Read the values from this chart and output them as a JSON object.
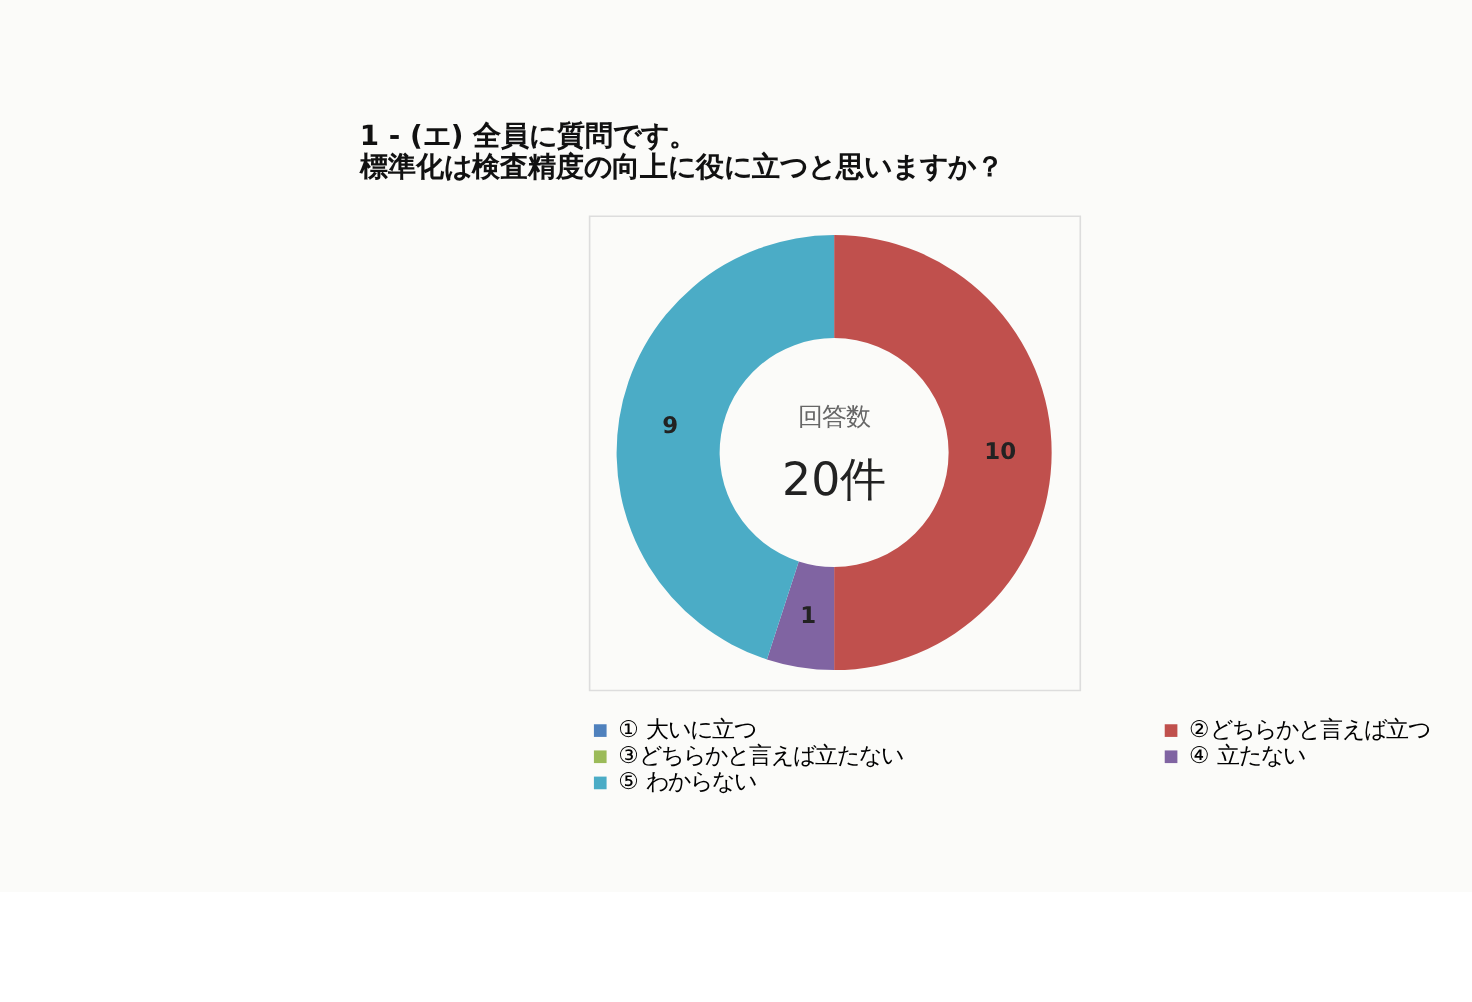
{
  "chart_data": {
    "type": "donut",
    "title": [
      "1 - (エ) 全員に質問です。",
      "標準化は検査精度の向上に役に立つと思いますか？"
    ],
    "categories": [
      "① 大いに立つ",
      "②どちらかと言えば立つ",
      "③どちらかと言えば立たない",
      "④ 立たない",
      "⑤ わからない"
    ],
    "values": [
      0,
      10,
      0,
      1,
      9
    ],
    "colors": [
      "#4f81bd",
      "#c0504d",
      "#9bbb59",
      "#8064a2",
      "#4bacc6"
    ],
    "value_labels": [
      null,
      "10",
      null,
      "1",
      "9"
    ],
    "annotations": [
      "回答数",
      "20件"
    ],
    "legend": "bottom"
  }
}
